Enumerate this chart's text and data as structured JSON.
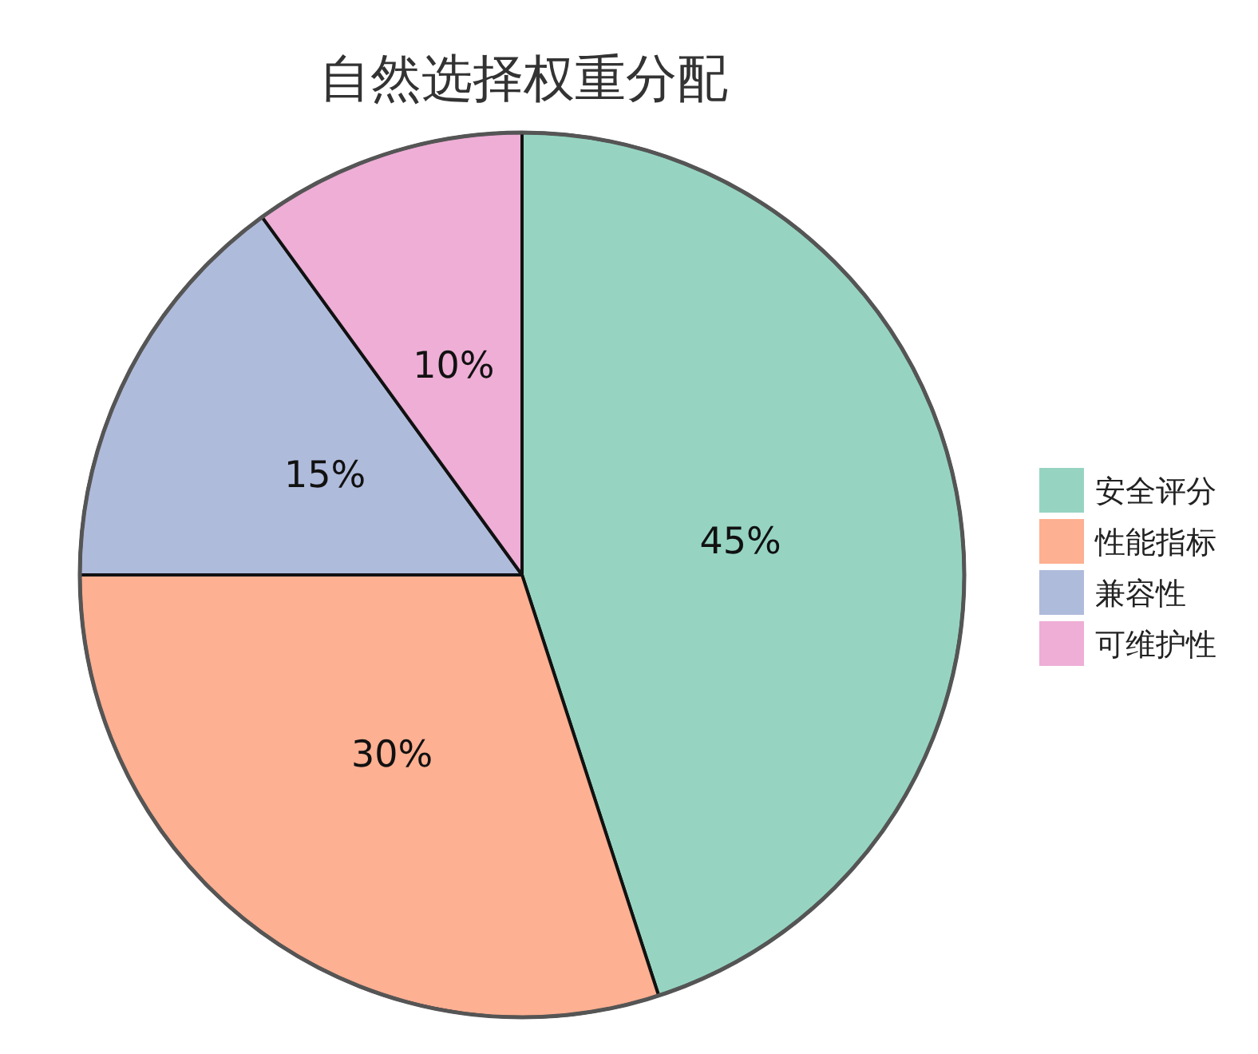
{
  "chart_data": {
    "type": "pie",
    "title": "自然选择权重分配",
    "categories": [
      "安全评分",
      "性能指标",
      "兼容性",
      "可维护性"
    ],
    "values": [
      45,
      30,
      15,
      10
    ],
    "colors": [
      "#96d4c1",
      "#fdb092",
      "#afbbdb",
      "#eeaed6"
    ],
    "value_labels": [
      "45%",
      "30%",
      "15%",
      "10%"
    ],
    "legend": "right"
  }
}
